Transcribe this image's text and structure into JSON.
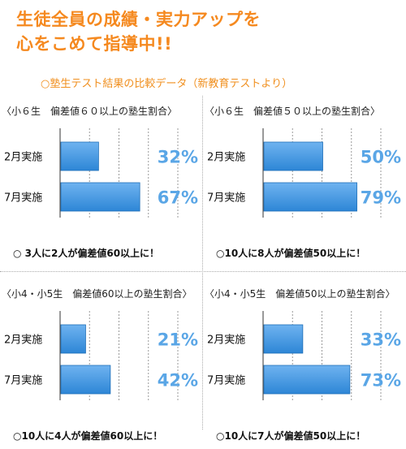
{
  "header": {
    "line1": "生徒全員の成績・実力アップを",
    "line2": "心をこめて指導中!!",
    "subtitle": "○塾生テスト結果の比較データ（新教育テストより）"
  },
  "colors": {
    "accent": "#f5891f",
    "bar": "#2d86d6",
    "value": "#5aa6e6"
  },
  "chart_data": [
    {
      "type": "bar",
      "title": "〈小６生　偏差値６０以上の塾生割合〉",
      "categories": [
        "2月実施",
        "7月実施"
      ],
      "values": [
        32,
        67
      ],
      "value_labels": [
        "32%",
        "67%"
      ],
      "xlim": [
        0,
        100
      ],
      "footnote": "○ 3人に2人が偏差値60以上に！"
    },
    {
      "type": "bar",
      "title": "〈小６生　偏差値５０以上の塾生割合〉",
      "categories": [
        "2月実施",
        "7月実施"
      ],
      "values": [
        50,
        79
      ],
      "value_labels": [
        "50%",
        "79%"
      ],
      "xlim": [
        0,
        100
      ],
      "footnote": "○10人に8人が偏差値50以上に！"
    },
    {
      "type": "bar",
      "title": "〈小4・小5生　偏差値60以上の塾生割合〉",
      "categories": [
        "2月実施",
        "7月実施"
      ],
      "values": [
        21,
        42
      ],
      "value_labels": [
        "21%",
        "42%"
      ],
      "xlim": [
        0,
        100
      ],
      "footnote": "○10人に4人が偏差値60以上に！"
    },
    {
      "type": "bar",
      "title": "〈小4・小5生　偏差値50以上の塾生割合〉",
      "categories": [
        "2月実施",
        "7月実施"
      ],
      "values": [
        33,
        73
      ],
      "value_labels": [
        "33%",
        "73%"
      ],
      "xlim": [
        0,
        100
      ],
      "footnote": "○10人に7人が偏差値50以上に！"
    }
  ]
}
